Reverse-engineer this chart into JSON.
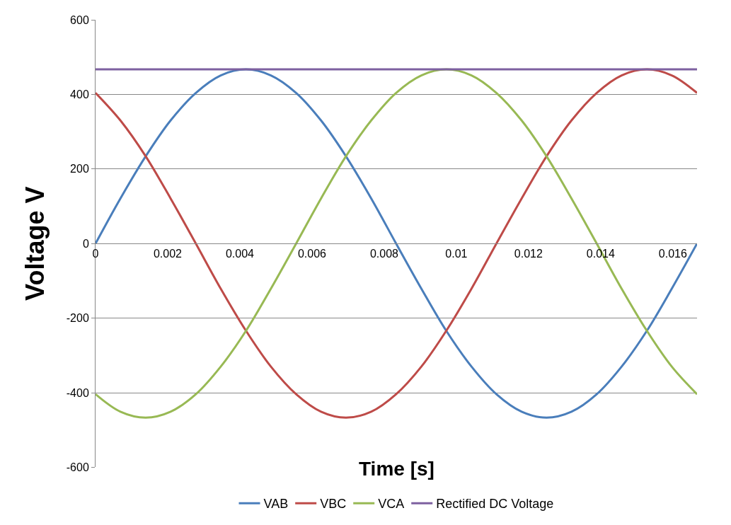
{
  "chart_data": {
    "type": "line",
    "xlabel": "Time [s]",
    "ylabel": "Voltage V",
    "x": [
      0,
      0.00069,
      0.00139,
      0.00208,
      0.00278,
      0.00347,
      0.00417,
      0.00486,
      0.00556,
      0.00625,
      0.00694,
      0.00764,
      0.00833,
      0.00903,
      0.00972,
      0.01042,
      0.01111,
      0.01181,
      0.0125,
      0.01319,
      0.01389,
      0.01458,
      0.01528,
      0.01597,
      0.01667
    ],
    "series": [
      {
        "name": "VAB",
        "color": "#4a7ebb",
        "values": [
          0,
          121,
          234,
          330,
          404,
          451,
          467,
          451,
          404,
          330,
          234,
          121,
          0,
          -121,
          -234,
          -330,
          -404,
          -451,
          -467,
          -451,
          -404,
          -330,
          -234,
          -121,
          0
        ]
      },
      {
        "name": "VBC",
        "color": "#be4b48",
        "values": [
          404,
          330,
          234,
          121,
          0,
          -121,
          -234,
          -330,
          -404,
          -451,
          -467,
          -451,
          -404,
          -330,
          -234,
          -121,
          0,
          121,
          234,
          330,
          404,
          451,
          467,
          451,
          404
        ]
      },
      {
        "name": "VCA",
        "color": "#98b954",
        "values": [
          -404,
          -451,
          -467,
          -451,
          -404,
          -330,
          -234,
          -121,
          0,
          121,
          234,
          330,
          404,
          451,
          467,
          451,
          404,
          330,
          234,
          121,
          0,
          -121,
          -234,
          -330,
          -404
        ]
      },
      {
        "name": "Rectified DC Voltage",
        "color": "#7d60a0",
        "x": [
          0,
          0.01667
        ],
        "values": [
          467,
          467
        ]
      }
    ],
    "xlim": [
      0,
      0.01667
    ],
    "xticks": [
      0,
      0.002,
      0.004,
      0.006,
      0.008,
      0.01,
      0.012,
      0.014,
      0.016
    ],
    "ylim": [
      -600,
      600
    ],
    "yticks": [
      -600,
      -400,
      -200,
      0,
      200,
      400,
      600
    ],
    "grid": "y",
    "legend": "bottom",
    "marker": "none",
    "line_style": "solid"
  }
}
